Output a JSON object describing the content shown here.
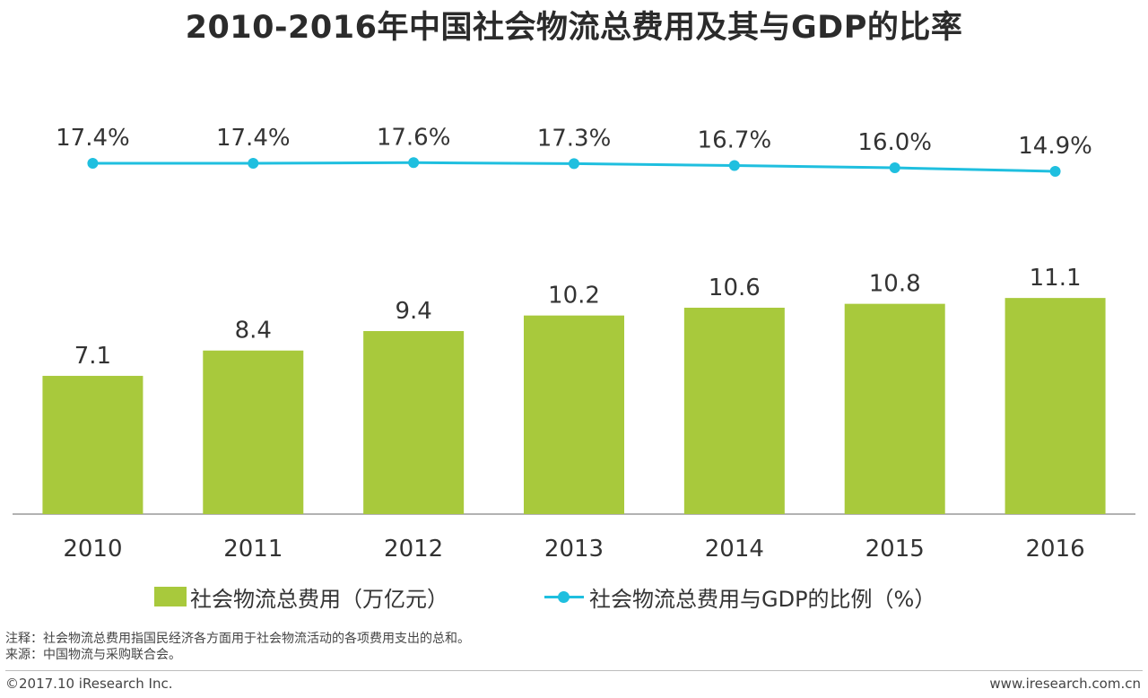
{
  "title": "2010-2016年中国社会物流总费用及其与GDP的比率",
  "chart_data": {
    "type": "bar",
    "categories": [
      "2010",
      "2011",
      "2012",
      "2013",
      "2014",
      "2015",
      "2016"
    ],
    "series": [
      {
        "name": "社会物流总费用（万亿元）",
        "type": "bar",
        "values": [
          7.1,
          8.4,
          9.4,
          10.2,
          10.6,
          10.8,
          11.1
        ],
        "labels": [
          "7.1",
          "8.4",
          "9.4",
          "10.2",
          "10.6",
          "10.8",
          "11.1"
        ]
      },
      {
        "name": "社会物流总费用与GDP的比例（%）",
        "type": "line",
        "values": [
          17.4,
          17.4,
          17.6,
          17.3,
          16.7,
          16.0,
          14.9
        ],
        "labels": [
          "17.4%",
          "17.4%",
          "17.6%",
          "17.3%",
          "16.7%",
          "16.0%",
          "14.9%"
        ]
      }
    ],
    "title": "2010-2016年中国社会物流总费用及其与GDP的比率",
    "xlabel": "",
    "ylabel": "",
    "grid": false,
    "legend_position": "bottom"
  },
  "legend": {
    "bar_label": "社会物流总费用（万亿元）",
    "line_label": "社会物流总费用与GDP的比例（%）"
  },
  "notes": {
    "note": "注释：社会物流总费用指国民经济各方面用于社会物流活动的各项费用支出的总和。",
    "source": "来源：中国物流与采购联合会。"
  },
  "footer": {
    "copyright": "©2017.10 iResearch Inc.",
    "url": "www.iresearch.com.cn"
  },
  "colors": {
    "bar": "#a8c93c",
    "line": "#1fbfdf",
    "axis": "#999999"
  }
}
